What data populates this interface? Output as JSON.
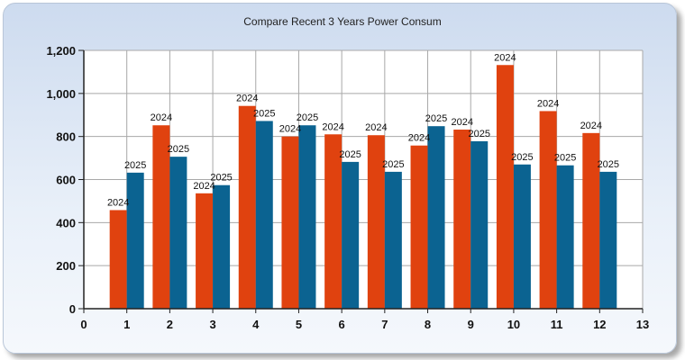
{
  "chart_data": {
    "type": "bar",
    "title": "Compare Recent 3 Years Power Consum",
    "xlabel": "",
    "ylabel": "",
    "x": [
      1,
      2,
      3,
      4,
      5,
      6,
      7,
      8,
      9,
      10,
      11,
      12
    ],
    "xlim": [
      0,
      13
    ],
    "ylim": [
      0,
      1200
    ],
    "x_ticks": [
      "0",
      "1",
      "2",
      "3",
      "4",
      "5",
      "6",
      "7",
      "8",
      "9",
      "10",
      "11",
      "12",
      "13"
    ],
    "y_ticks": [
      "0",
      "200",
      "400",
      "600",
      "800",
      "1,000",
      "1,200"
    ],
    "grid": true,
    "series": [
      {
        "name": "2024",
        "color": "#e0420f",
        "values": [
          458,
          852,
          536,
          942,
          800,
          810,
          806,
          758,
          832,
          1132,
          918,
          816
        ],
        "labels": [
          "2024",
          "2024",
          "2024",
          "2024",
          "2024",
          "2024",
          "2024",
          "2024",
          "2024",
          "2024",
          "2024",
          "2024"
        ]
      },
      {
        "name": "2025",
        "color": "#0b6391",
        "values": [
          632,
          706,
          574,
          872,
          852,
          682,
          636,
          848,
          778,
          670,
          666,
          636
        ],
        "labels": [
          "2025",
          "2025",
          "2025",
          "2025",
          "2025",
          "2025",
          "2025",
          "2025",
          "2025",
          "2025",
          "2025",
          "2025"
        ]
      }
    ]
  }
}
